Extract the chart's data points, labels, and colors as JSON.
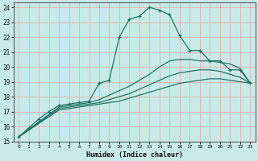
{
  "xlabel": "Humidex (Indice chaleur)",
  "xlim": [
    -0.5,
    23.5
  ],
  "ylim": [
    15,
    24.3
  ],
  "yticks": [
    15,
    16,
    17,
    18,
    19,
    20,
    21,
    22,
    23,
    24
  ],
  "xticks": [
    0,
    1,
    2,
    3,
    4,
    5,
    6,
    7,
    8,
    9,
    10,
    11,
    12,
    13,
    14,
    15,
    16,
    17,
    18,
    19,
    20,
    21,
    22,
    23
  ],
  "bg_color": "#c8eae8",
  "grid_color": "#e0b8b8",
  "line_color": "#1a6e60",
  "line1_x": [
    0,
    1,
    2,
    3,
    4,
    5,
    6,
    7,
    8,
    9,
    10,
    11,
    12,
    13,
    14,
    15,
    16,
    17,
    18,
    19,
    20,
    21,
    22,
    23
  ],
  "line1_y": [
    15.3,
    15.9,
    16.5,
    17.0,
    17.4,
    17.5,
    17.6,
    17.7,
    18.9,
    19.1,
    22.0,
    23.2,
    23.4,
    24.0,
    23.8,
    23.5,
    22.1,
    21.1,
    21.1,
    20.4,
    20.4,
    19.8,
    19.8,
    18.9
  ],
  "line2_x": [
    0,
    4,
    5,
    6,
    7,
    8,
    9,
    10,
    11,
    12,
    13,
    14,
    15,
    16,
    17,
    18,
    19,
    20,
    21,
    22,
    23
  ],
  "line2_y": [
    15.3,
    17.3,
    17.4,
    17.5,
    17.6,
    17.8,
    18.1,
    18.4,
    18.7,
    19.1,
    19.5,
    20.0,
    20.4,
    20.5,
    20.5,
    20.4,
    20.4,
    20.3,
    20.2,
    19.9,
    18.9
  ],
  "line3_x": [
    0,
    4,
    5,
    6,
    7,
    8,
    9,
    10,
    11,
    12,
    13,
    14,
    15,
    16,
    17,
    18,
    19,
    20,
    21,
    22,
    23
  ],
  "line3_y": [
    15.3,
    17.2,
    17.3,
    17.4,
    17.5,
    17.6,
    17.8,
    18.0,
    18.2,
    18.5,
    18.8,
    19.1,
    19.4,
    19.6,
    19.7,
    19.8,
    19.8,
    19.7,
    19.5,
    19.3,
    18.9
  ],
  "line4_x": [
    0,
    4,
    5,
    6,
    7,
    8,
    9,
    10,
    11,
    12,
    13,
    14,
    15,
    16,
    17,
    18,
    19,
    20,
    21,
    22,
    23
  ],
  "line4_y": [
    15.3,
    17.1,
    17.2,
    17.3,
    17.4,
    17.5,
    17.6,
    17.7,
    17.9,
    18.1,
    18.3,
    18.5,
    18.7,
    18.9,
    19.0,
    19.1,
    19.2,
    19.2,
    19.1,
    19.0,
    18.9
  ]
}
